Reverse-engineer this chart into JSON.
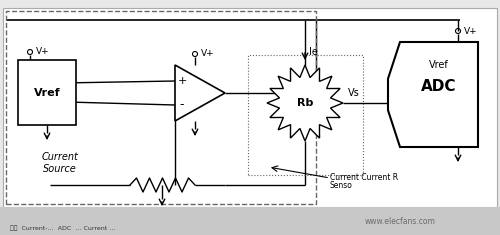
{
  "fig_bg": "#e8e8e8",
  "plot_bg": "#ffffff",
  "line_color": "#000000",
  "dash_color": "#666666",
  "gray_bar_color": "#c8c8c8",
  "vref_label": "Vref",
  "adc_label": "ADC",
  "adc_vref_label": "Vref",
  "current_source_label": "Current\nSource",
  "rb_label": "Rb",
  "ie_label": "Ie",
  "vs_label": "Vs",
  "vplus": "V+",
  "plus_sign": "+",
  "minus_sign": "-",
  "sensor_text1": "Current Current R",
  "sensor_text2": "Senso",
  "watermark": "www.elecfans.com"
}
